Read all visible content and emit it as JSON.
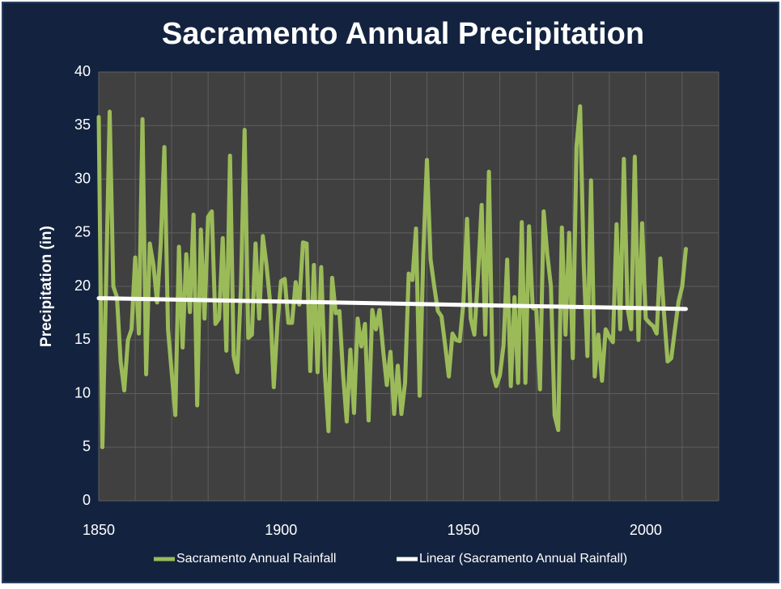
{
  "chart_data": {
    "type": "line",
    "title": "Sacramento Annual Precipitation",
    "ylabel": "Precipitation (in)",
    "xlim": [
      1850,
      2020
    ],
    "ylim": [
      0,
      40
    ],
    "xticks": [
      1850,
      1900,
      1950,
      2000
    ],
    "xgrid": [
      1850,
      1860,
      1870,
      1880,
      1890,
      1900,
      1910,
      1920,
      1930,
      1940,
      1950,
      1960,
      1970,
      1980,
      1990,
      2000,
      2010,
      2020
    ],
    "yticks": [
      0,
      5,
      10,
      15,
      20,
      25,
      30,
      35,
      40
    ],
    "grid": true,
    "legend": "bottom",
    "series": [
      {
        "name": "Sacramento Annual Rainfall",
        "color": "#9bbb59",
        "x": [
          1850,
          1851,
          1852,
          1853,
          1854,
          1855,
          1856,
          1857,
          1858,
          1859,
          1860,
          1861,
          1862,
          1863,
          1864,
          1865,
          1866,
          1867,
          1868,
          1869,
          1870,
          1871,
          1872,
          1873,
          1874,
          1875,
          1876,
          1877,
          1878,
          1879,
          1880,
          1881,
          1882,
          1883,
          1884,
          1885,
          1886,
          1887,
          1888,
          1889,
          1890,
          1891,
          1892,
          1893,
          1894,
          1895,
          1896,
          1897,
          1898,
          1899,
          1900,
          1901,
          1902,
          1903,
          1904,
          1905,
          1906,
          1907,
          1908,
          1909,
          1910,
          1911,
          1912,
          1913,
          1914,
          1915,
          1916,
          1917,
          1918,
          1919,
          1920,
          1921,
          1922,
          1923,
          1924,
          1925,
          1926,
          1927,
          1928,
          1929,
          1930,
          1931,
          1932,
          1933,
          1934,
          1935,
          1936,
          1937,
          1938,
          1939,
          1940,
          1941,
          1942,
          1943,
          1944,
          1945,
          1946,
          1947,
          1948,
          1949,
          1950,
          1951,
          1952,
          1953,
          1954,
          1955,
          1956,
          1957,
          1958,
          1959,
          1960,
          1961,
          1962,
          1963,
          1964,
          1965,
          1966,
          1967,
          1968,
          1969,
          1970,
          1971,
          1972,
          1973,
          1974,
          1975,
          1976,
          1977,
          1978,
          1979,
          1980,
          1981,
          1982,
          1983,
          1984,
          1985,
          1986,
          1987,
          1988,
          1989,
          1990,
          1991,
          1992,
          1993,
          1994,
          1995,
          1996,
          1997,
          1998,
          1999,
          2000,
          2001,
          2002,
          2003,
          2004,
          2005,
          2006,
          2007,
          2008,
          2009,
          2010,
          2011
        ],
        "values": [
          35.8,
          5,
          20,
          36.3,
          20,
          19,
          13,
          10.3,
          15,
          16,
          22.7,
          15.6,
          35.6,
          11.8,
          24,
          22,
          18.5,
          24,
          33,
          16,
          12,
          8,
          23.7,
          14.3,
          23,
          17.6,
          26.7,
          8.9,
          25.3,
          17,
          26.5,
          27,
          16.5,
          17,
          24.5,
          14,
          32.2,
          13.5,
          12,
          20,
          34.6,
          15.2,
          15.5,
          24,
          17,
          24.7,
          22,
          18.5,
          10.6,
          16.5,
          20.5,
          20.7,
          16.6,
          16.6,
          20.4,
          18.3,
          24.1,
          24,
          12.1,
          22,
          12,
          21.8,
          12,
          6.5,
          20.8,
          17.5,
          17.7,
          11.8,
          7.4,
          14.1,
          8.2,
          17,
          14.4,
          16.5,
          7.5,
          17.8,
          16,
          17.8,
          14,
          10.8,
          13.9,
          8.1,
          12.6,
          8.1,
          11,
          21.2,
          20.6,
          25.4,
          9.8,
          23,
          31.8,
          22.5,
          20,
          17.7,
          17.2,
          14.5,
          11.6,
          15.6,
          15,
          14.9,
          18.5,
          26.3,
          17,
          15.5,
          21,
          27.6,
          15.5,
          30.7,
          12,
          10.7,
          11.7,
          14.5,
          22.5,
          10.7,
          19,
          11,
          26,
          11,
          25.6,
          18,
          17.8,
          10.4,
          27,
          23,
          20,
          8,
          6.6,
          25.5,
          15.5,
          25,
          13.3,
          33,
          36.8,
          22,
          13.5,
          29.9,
          11.6,
          15.5,
          11.2,
          16,
          15.3,
          14.8,
          25.8,
          16,
          31.9,
          18,
          16,
          32.1,
          15,
          25.9,
          17,
          16.6,
          16.3,
          15.6,
          22.6,
          17.5,
          13,
          13.3,
          16,
          18.6,
          20,
          23.5
        ]
      },
      {
        "name": "Linear (Sacramento Annual Rainfall)",
        "color": "#ffffff",
        "x": [
          1850,
          2011
        ],
        "values": [
          18.9,
          17.9
        ]
      }
    ]
  }
}
